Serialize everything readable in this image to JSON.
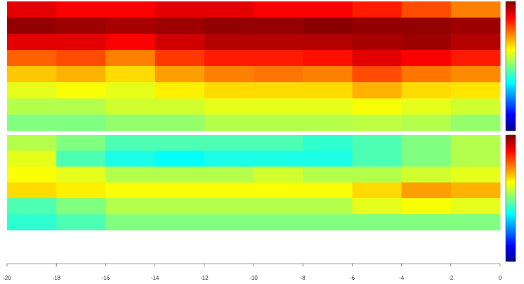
{
  "chart_data": {
    "type": "heatmap",
    "colormap": "jet",
    "x": [
      -19,
      -17,
      -15,
      -13,
      -11,
      -9,
      -7,
      -5,
      -3,
      -1
    ],
    "xlim": [
      -20,
      0
    ],
    "xticks": [
      -20,
      -18,
      -16,
      -14,
      -12,
      -10,
      -8,
      -6,
      -4,
      -2,
      0
    ],
    "zlim": [
      0,
      1
    ],
    "panels": [
      {
        "z": [
          [
            0.9,
            0.88,
            0.88,
            0.9,
            0.9,
            0.88,
            0.88,
            0.85,
            0.8,
            0.75
          ],
          [
            0.98,
            0.97,
            0.96,
            0.97,
            0.98,
            0.98,
            0.99,
            0.98,
            0.98,
            0.97
          ],
          [
            0.9,
            0.9,
            0.88,
            0.92,
            0.95,
            0.95,
            0.95,
            0.96,
            0.97,
            0.95
          ],
          [
            0.78,
            0.8,
            0.75,
            0.82,
            0.85,
            0.85,
            0.86,
            0.9,
            0.88,
            0.85
          ],
          [
            0.68,
            0.7,
            0.66,
            0.72,
            0.75,
            0.76,
            0.75,
            0.8,
            0.76,
            0.74
          ],
          [
            0.6,
            0.62,
            0.6,
            0.64,
            0.66,
            0.66,
            0.66,
            0.7,
            0.66,
            0.65
          ],
          [
            0.55,
            0.55,
            0.58,
            0.58,
            0.6,
            0.6,
            0.6,
            0.62,
            0.6,
            0.58
          ],
          [
            0.5,
            0.5,
            0.52,
            0.52,
            0.55,
            0.55,
            0.55,
            0.56,
            0.55,
            0.52
          ]
        ]
      },
      {
        "z": [
          [
            0.55,
            0.5,
            0.45,
            0.45,
            0.45,
            0.45,
            0.42,
            0.45,
            0.5,
            0.55
          ],
          [
            0.6,
            0.45,
            0.4,
            0.38,
            0.4,
            0.4,
            0.4,
            0.45,
            0.5,
            0.55
          ],
          [
            0.62,
            0.6,
            0.55,
            0.55,
            0.55,
            0.58,
            0.55,
            0.55,
            0.58,
            0.6
          ],
          [
            0.66,
            0.64,
            0.62,
            0.62,
            0.62,
            0.62,
            0.62,
            0.66,
            0.72,
            0.7
          ],
          [
            0.45,
            0.5,
            0.55,
            0.55,
            0.55,
            0.55,
            0.55,
            0.6,
            0.62,
            0.6
          ],
          [
            0.42,
            0.45,
            0.5,
            0.5,
            0.5,
            0.5,
            0.5,
            0.5,
            0.5,
            0.5
          ],
          [
            null,
            null,
            null,
            null,
            null,
            null,
            null,
            null,
            null,
            null
          ],
          [
            null,
            null,
            null,
            null,
            null,
            null,
            null,
            null,
            null,
            null
          ]
        ]
      }
    ]
  }
}
